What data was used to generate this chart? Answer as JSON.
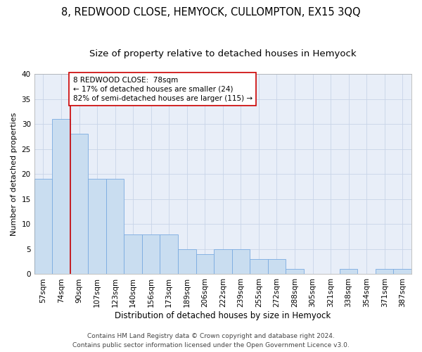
{
  "title": "8, REDWOOD CLOSE, HEMYOCK, CULLOMPTON, EX15 3QQ",
  "subtitle": "Size of property relative to detached houses in Hemyock",
  "xlabel": "Distribution of detached houses by size in Hemyock",
  "ylabel": "Number of detached properties",
  "categories": [
    "57sqm",
    "74sqm",
    "90sqm",
    "107sqm",
    "123sqm",
    "140sqm",
    "156sqm",
    "173sqm",
    "189sqm",
    "206sqm",
    "222sqm",
    "239sqm",
    "255sqm",
    "272sqm",
    "288sqm",
    "305sqm",
    "321sqm",
    "338sqm",
    "354sqm",
    "371sqm",
    "387sqm"
  ],
  "values": [
    19,
    31,
    28,
    19,
    19,
    8,
    8,
    8,
    5,
    4,
    5,
    5,
    3,
    3,
    1,
    0,
    0,
    1,
    0,
    1,
    1
  ],
  "bar_color": "#c9ddf0",
  "bar_edge_color": "#7aabe0",
  "grid_color": "#c8d4e8",
  "background_color": "#e8eef8",
  "annotation_box_text": "8 REDWOOD CLOSE:  78sqm\n← 17% of detached houses are smaller (24)\n82% of semi-detached houses are larger (115) →",
  "ylim": [
    0,
    40
  ],
  "yticks": [
    0,
    5,
    10,
    15,
    20,
    25,
    30,
    35,
    40
  ],
  "footer_line1": "Contains HM Land Registry data © Crown copyright and database right 2024.",
  "footer_line2": "Contains public sector information licensed under the Open Government Licence v3.0.",
  "title_fontsize": 10.5,
  "subtitle_fontsize": 9.5,
  "xlabel_fontsize": 8.5,
  "ylabel_fontsize": 8,
  "tick_fontsize": 7.5,
  "annotation_fontsize": 7.5,
  "footer_fontsize": 6.5
}
